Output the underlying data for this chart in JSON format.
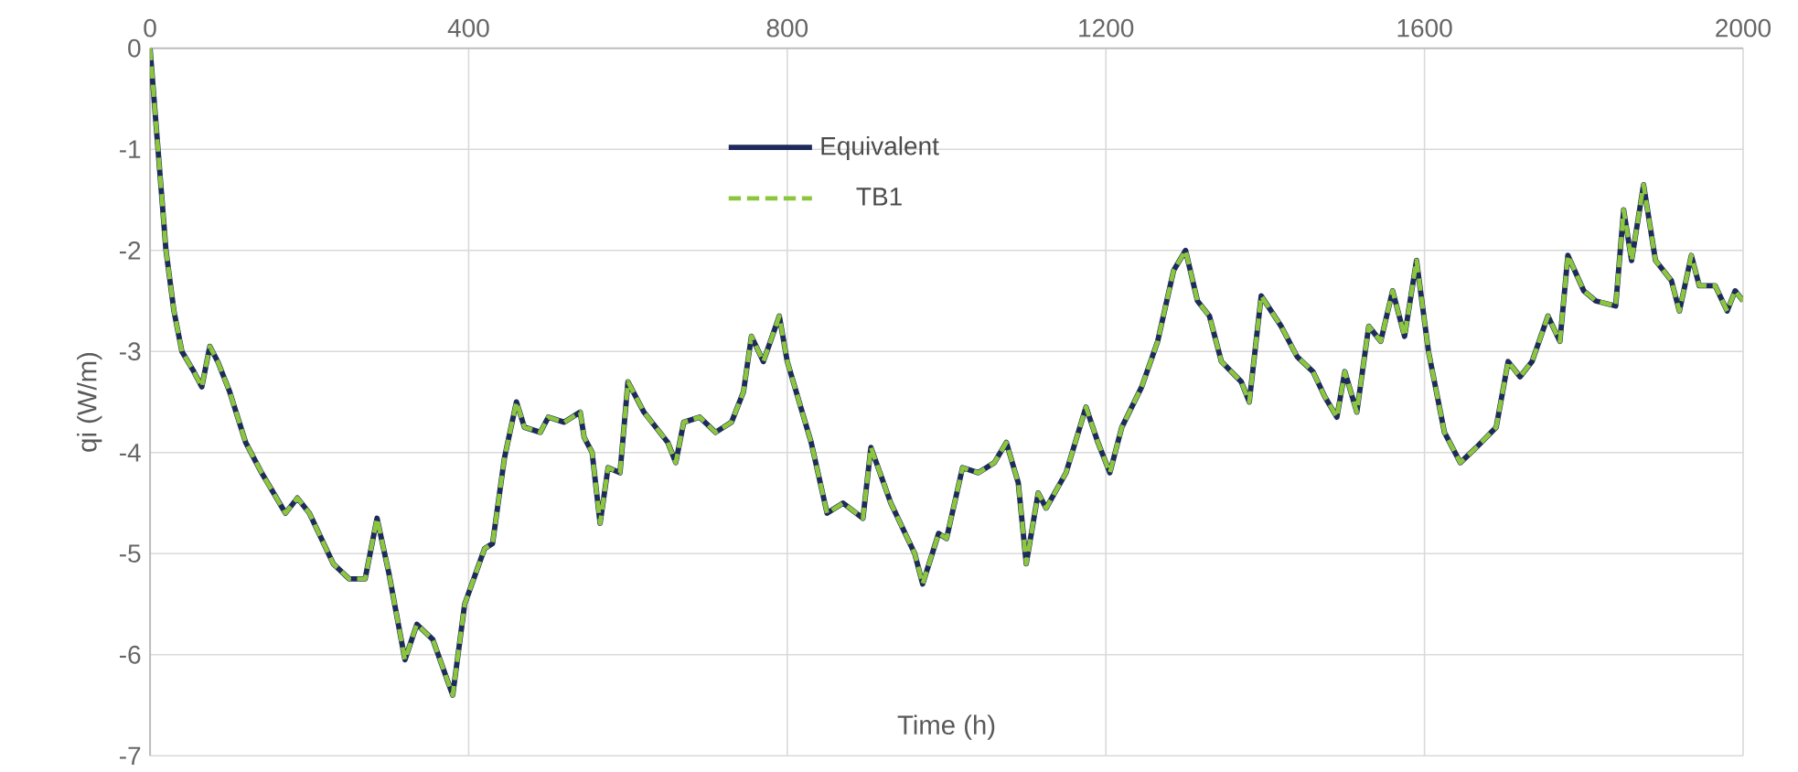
{
  "chart_data": {
    "type": "line",
    "xlabel": "Time (h)",
    "ylabel": "qi (W/m)",
    "xlim": [
      0,
      2000
    ],
    "xticks": [
      0,
      400,
      800,
      1200,
      1600,
      2000
    ],
    "ylim": [
      -7,
      0
    ],
    "yticks": [
      -7,
      -6,
      -5,
      -4,
      -3,
      -2,
      -1,
      0
    ],
    "grid": true,
    "legend": "top",
    "x": [
      0,
      10,
      20,
      30,
      40,
      55,
      65,
      75,
      85,
      100,
      120,
      140,
      170,
      185,
      200,
      230,
      250,
      270,
      285,
      300,
      320,
      335,
      355,
      380,
      395,
      420,
      430,
      445,
      460,
      470,
      490,
      500,
      520,
      540,
      545,
      555,
      565,
      575,
      590,
      600,
      620,
      650,
      660,
      670,
      690,
      710,
      730,
      745,
      755,
      770,
      790,
      800,
      830,
      850,
      870,
      895,
      905,
      930,
      960,
      970,
      990,
      1000,
      1020,
      1040,
      1060,
      1075,
      1090,
      1100,
      1115,
      1125,
      1150,
      1175,
      1190,
      1205,
      1220,
      1245,
      1265,
      1285,
      1300,
      1315,
      1330,
      1345,
      1370,
      1380,
      1395,
      1420,
      1440,
      1460,
      1475,
      1490,
      1500,
      1515,
      1530,
      1545,
      1560,
      1575,
      1590,
      1605,
      1625,
      1645,
      1665,
      1690,
      1705,
      1720,
      1735,
      1755,
      1770,
      1780,
      1800,
      1815,
      1840,
      1850,
      1860,
      1875,
      1890,
      1910,
      1920,
      1935,
      1945,
      1965,
      1980,
      1990,
      2000
    ],
    "series": [
      {
        "name": "Equivalent",
        "color": "#1f2a5c",
        "line_style": "solid",
        "values": [
          0,
          -1.0,
          -2.0,
          -2.6,
          -3.0,
          -3.2,
          -3.35,
          -2.95,
          -3.1,
          -3.4,
          -3.9,
          -4.2,
          -4.6,
          -4.45,
          -4.6,
          -5.1,
          -5.25,
          -5.25,
          -4.65,
          -5.2,
          -6.05,
          -5.7,
          -5.85,
          -6.4,
          -5.5,
          -4.95,
          -4.9,
          -4.05,
          -3.5,
          -3.75,
          -3.8,
          -3.65,
          -3.7,
          -3.6,
          -3.85,
          -4.0,
          -4.7,
          -4.15,
          -4.2,
          -3.3,
          -3.6,
          -3.9,
          -4.1,
          -3.7,
          -3.65,
          -3.8,
          -3.7,
          -3.4,
          -2.85,
          -3.1,
          -2.65,
          -3.1,
          -3.9,
          -4.6,
          -4.5,
          -4.65,
          -3.95,
          -4.5,
          -5.0,
          -5.3,
          -4.8,
          -4.85,
          -4.15,
          -4.2,
          -4.1,
          -3.9,
          -4.3,
          -5.1,
          -4.4,
          -4.55,
          -4.2,
          -3.55,
          -3.9,
          -4.2,
          -3.75,
          -3.35,
          -2.9,
          -2.2,
          -2.0,
          -2.5,
          -2.65,
          -3.1,
          -3.3,
          -3.5,
          -2.45,
          -2.75,
          -3.05,
          -3.2,
          -3.45,
          -3.65,
          -3.2,
          -3.6,
          -2.75,
          -2.9,
          -2.4,
          -2.85,
          -2.1,
          -3.0,
          -3.8,
          -4.1,
          -3.95,
          -3.75,
          -3.1,
          -3.25,
          -3.1,
          -2.65,
          -2.9,
          -2.05,
          -2.4,
          -2.5,
          -2.55,
          -1.6,
          -2.1,
          -1.35,
          -2.1,
          -2.3,
          -2.6,
          -2.05,
          -2.35,
          -2.35,
          -2.6,
          -2.4,
          -2.5
        ]
      },
      {
        "name": "TB1",
        "color": "#8cc63f",
        "line_style": "dashed",
        "values": [
          0,
          -1.0,
          -2.0,
          -2.6,
          -3.0,
          -3.2,
          -3.35,
          -2.95,
          -3.1,
          -3.4,
          -3.9,
          -4.2,
          -4.6,
          -4.45,
          -4.6,
          -5.1,
          -5.25,
          -5.25,
          -4.65,
          -5.2,
          -6.05,
          -5.7,
          -5.85,
          -6.4,
          -5.5,
          -4.95,
          -4.9,
          -4.05,
          -3.5,
          -3.75,
          -3.8,
          -3.65,
          -3.7,
          -3.6,
          -3.85,
          -4.0,
          -4.7,
          -4.15,
          -4.2,
          -3.3,
          -3.6,
          -3.9,
          -4.1,
          -3.7,
          -3.65,
          -3.8,
          -3.7,
          -3.4,
          -2.85,
          -3.1,
          -2.65,
          -3.1,
          -3.9,
          -4.6,
          -4.5,
          -4.65,
          -3.95,
          -4.5,
          -5.0,
          -5.3,
          -4.8,
          -4.85,
          -4.15,
          -4.2,
          -4.1,
          -3.9,
          -4.3,
          -5.1,
          -4.4,
          -4.55,
          -4.2,
          -3.55,
          -3.9,
          -4.2,
          -3.75,
          -3.35,
          -2.9,
          -2.2,
          -2.0,
          -2.5,
          -2.65,
          -3.1,
          -3.3,
          -3.5,
          -2.45,
          -2.75,
          -3.05,
          -3.2,
          -3.45,
          -3.65,
          -3.2,
          -3.6,
          -2.75,
          -2.9,
          -2.4,
          -2.85,
          -2.1,
          -3.0,
          -3.8,
          -4.1,
          -3.95,
          -3.75,
          -3.1,
          -3.25,
          -3.1,
          -2.65,
          -2.9,
          -2.05,
          -2.4,
          -2.5,
          -2.55,
          -1.6,
          -2.1,
          -1.35,
          -2.1,
          -2.3,
          -2.6,
          -2.05,
          -2.35,
          -2.35,
          -2.6,
          -2.4,
          -2.5
        ]
      }
    ]
  }
}
